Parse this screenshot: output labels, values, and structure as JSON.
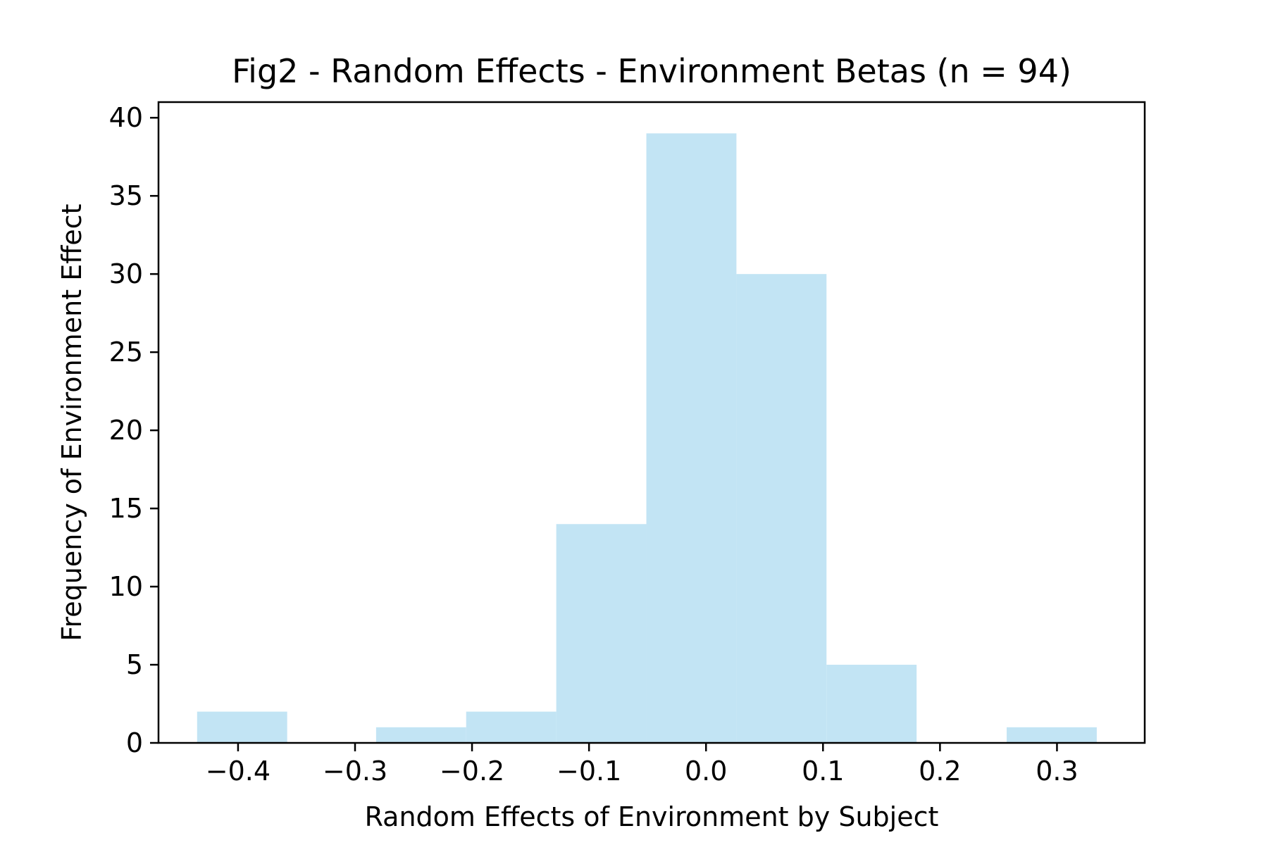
{
  "chart_data": {
    "type": "bar",
    "title": "Fig2 - Random Effects - Environment Betas (n = 94)",
    "xlabel": "Random Effects of Environment by Subject",
    "ylabel": "Frequency of Environment Effect",
    "xlim": [
      -0.468,
      0.375
    ],
    "ylim": [
      0,
      41
    ],
    "xticks": [
      -0.4,
      -0.3,
      -0.2,
      -0.1,
      0.0,
      0.1,
      0.2,
      0.3
    ],
    "xtick_labels": [
      "−0.4",
      "−0.3",
      "−0.2",
      "−0.1",
      "0.0",
      "0.1",
      "0.2",
      "0.3"
    ],
    "yticks": [
      0,
      5,
      10,
      15,
      20,
      25,
      30,
      35,
      40
    ],
    "ytick_labels": [
      "0",
      "5",
      "10",
      "15",
      "20",
      "25",
      "30",
      "35",
      "40"
    ],
    "bins": [
      {
        "x0": -0.435,
        "x1": -0.358,
        "count": 2
      },
      {
        "x0": -0.358,
        "x1": -0.282,
        "count": 0
      },
      {
        "x0": -0.282,
        "x1": -0.205,
        "count": 1
      },
      {
        "x0": -0.205,
        "x1": -0.128,
        "count": 2
      },
      {
        "x0": -0.128,
        "x1": -0.051,
        "count": 14
      },
      {
        "x0": -0.051,
        "x1": 0.026,
        "count": 39
      },
      {
        "x0": 0.026,
        "x1": 0.103,
        "count": 30
      },
      {
        "x0": 0.103,
        "x1": 0.18,
        "count": 5
      },
      {
        "x0": 0.18,
        "x1": 0.257,
        "count": 0
      },
      {
        "x0": 0.257,
        "x1": 0.334,
        "count": 1
      }
    ],
    "bar_color": "#c2e4f4",
    "grid": false,
    "legend": "none"
  }
}
